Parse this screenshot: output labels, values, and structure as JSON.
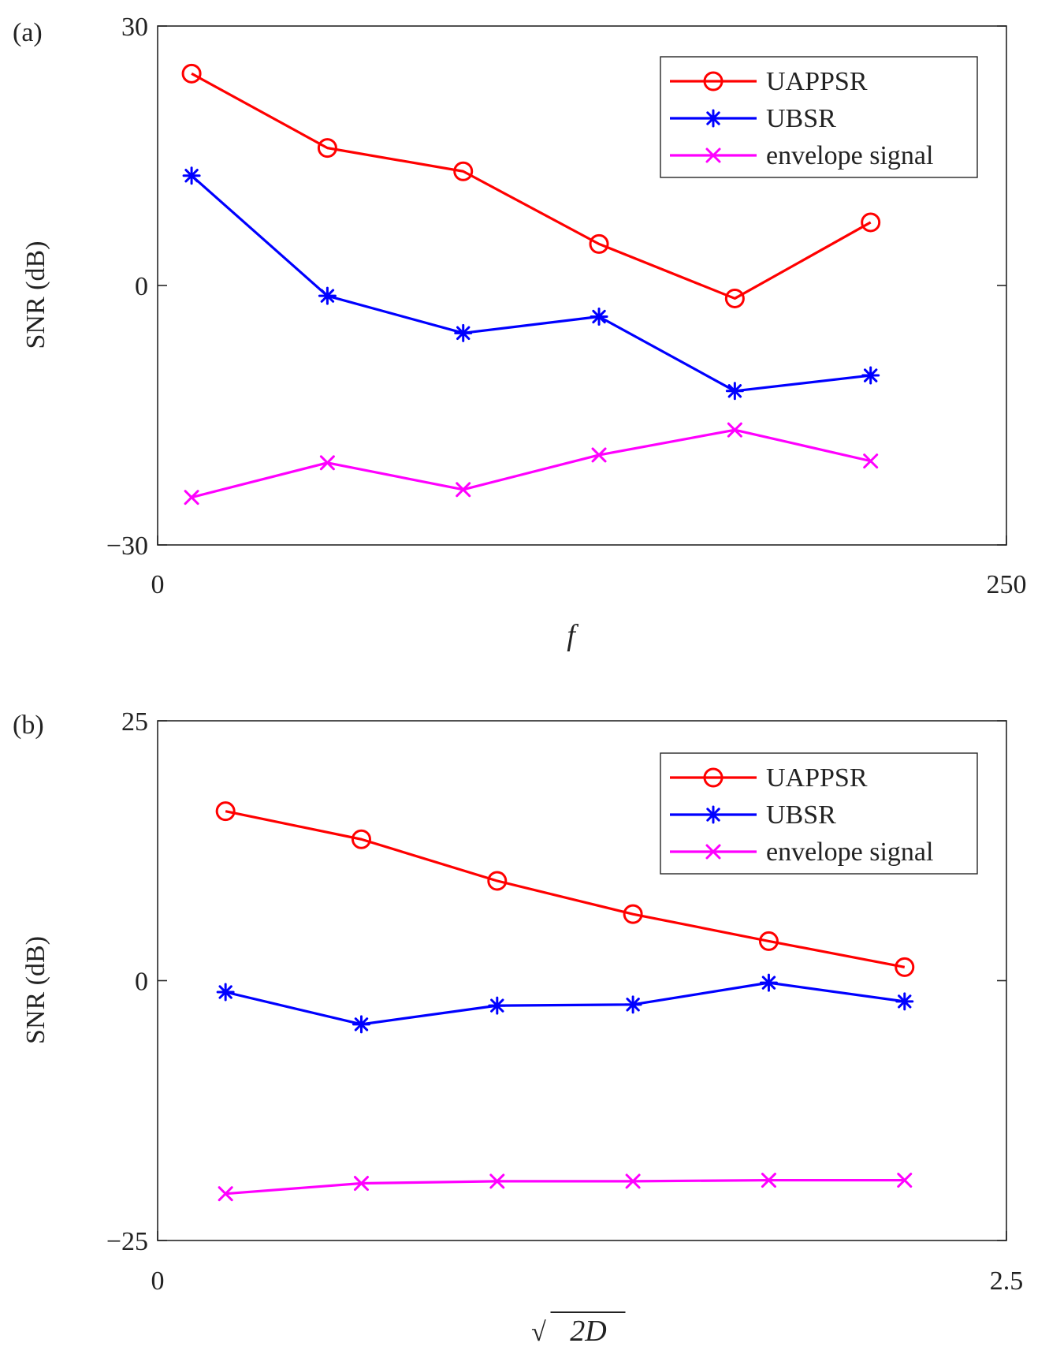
{
  "chart_data": [
    {
      "type": "line",
      "panel_label": "(a)",
      "xlabel": "f",
      "ylabel": "SNR (dB)",
      "xlim": [
        0,
        250
      ],
      "ylim": [
        -30,
        30
      ],
      "xticks": [
        "0",
        "250"
      ],
      "yticks": [
        "30",
        "0",
        "−30"
      ],
      "grid": false,
      "legend_position": "top-right",
      "x": [
        10,
        50,
        90,
        130,
        170,
        210
      ],
      "series": [
        {
          "name": "UAPPSR",
          "color": "#ff0000",
          "marker": "circle",
          "values": [
            24.5,
            15.9,
            13.2,
            4.8,
            -1.5,
            7.3
          ]
        },
        {
          "name": "UBSR",
          "color": "#0000ff",
          "marker": "asterisk",
          "values": [
            12.7,
            -1.2,
            -5.5,
            -3.6,
            -12.2,
            -10.4
          ]
        },
        {
          "name": "envelope signal",
          "color": "#ff00ff",
          "marker": "x",
          "values": [
            -24.5,
            -20.5,
            -23.6,
            -19.6,
            -16.7,
            -20.3
          ]
        }
      ]
    },
    {
      "type": "line",
      "panel_label": "(b)",
      "xlabel": "√2D",
      "xlabel_radical": "√",
      "xlabel_radicand": "2D",
      "ylabel": "SNR (dB)",
      "xlim": [
        0,
        2.5
      ],
      "ylim": [
        -25,
        25
      ],
      "xticks": [
        "0",
        "2.5"
      ],
      "yticks": [
        "25",
        "0",
        "−25"
      ],
      "grid": false,
      "legend_position": "top-right",
      "x": [
        0.2,
        0.6,
        1.0,
        1.4,
        1.8,
        2.2
      ],
      "series": [
        {
          "name": "UAPPSR",
          "color": "#ff0000",
          "marker": "circle",
          "values": [
            16.3,
            13.6,
            9.6,
            6.4,
            3.8,
            1.3
          ]
        },
        {
          "name": "UBSR",
          "color": "#0000ff",
          "marker": "asterisk",
          "values": [
            -1.1,
            -4.2,
            -2.4,
            -2.3,
            -0.2,
            -2.0
          ]
        },
        {
          "name": "envelope signal",
          "color": "#ff00ff",
          "marker": "x",
          "values": [
            -20.5,
            -19.5,
            -19.3,
            -19.3,
            -19.2,
            -19.2
          ]
        }
      ]
    }
  ]
}
